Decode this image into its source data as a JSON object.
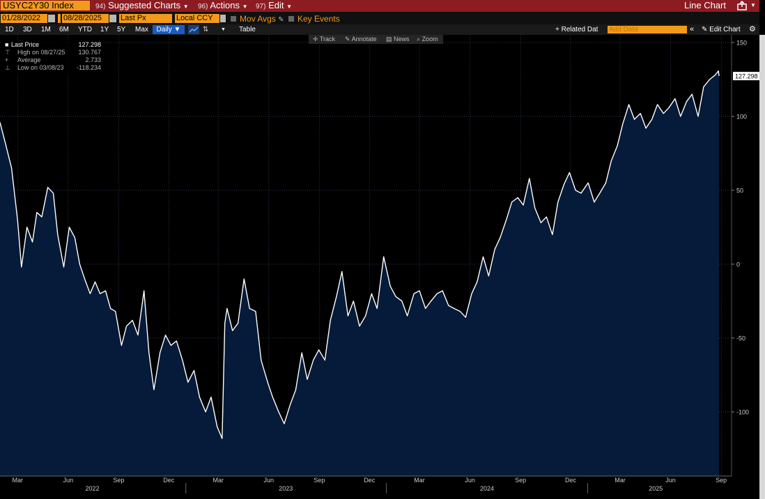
{
  "toolbar": {
    "ticker": "USYC2Y30 Index",
    "menu1_num": "94)",
    "menu1_label": "Suggested Charts",
    "menu2_num": "96)",
    "menu2_label": "Actions",
    "menu3_num": "97)",
    "menu3_label": "Edit",
    "chart_type": "Line Chart"
  },
  "settings": {
    "start_date": "01/28/2022",
    "end_date": "08/28/2025",
    "field": "Last Px",
    "currency": "Local CCY",
    "mov_avgs": "Mov Avgs",
    "key_events": "Key Events"
  },
  "periods": [
    "1D",
    "3D",
    "1M",
    "6M",
    "YTD",
    "1Y",
    "5Y",
    "Max"
  ],
  "frequency": "Daily",
  "table_label": "Table",
  "related_label": "+ Related Dat",
  "add_data_placeholder": "Add Data",
  "edit_chart_label": "Edit Chart",
  "tools": {
    "track": "Track",
    "annotate": "Annotate",
    "news": "News",
    "zoom": "Zoom"
  },
  "legend": {
    "last_label": "Last Price",
    "last_value": "127.298",
    "high_label": "High on 08/27/25",
    "high_value": "130.767",
    "avg_label": "Average",
    "avg_value": "2.733",
    "low_label": "Low on 03/08/23",
    "low_value": "-118.234"
  },
  "colors": {
    "accent": "#f39a1a",
    "title_bar": "#8c1c22",
    "line": "#ffffff",
    "fill": "#061a3a"
  },
  "chart_data": {
    "type": "area",
    "series": [
      {
        "name": "Last Price",
        "x": [
          "2022-01-28",
          "2022-02-08",
          "2022-02-18",
          "2022-03-01",
          "2022-03-08",
          "2022-03-18",
          "2022-03-28",
          "2022-04-05",
          "2022-04-14",
          "2022-04-25",
          "2022-05-05",
          "2022-05-13",
          "2022-05-24",
          "2022-06-03",
          "2022-06-13",
          "2022-06-22",
          "2022-07-01",
          "2022-07-11",
          "2022-07-20",
          "2022-07-29",
          "2022-08-08",
          "2022-08-17",
          "2022-08-26",
          "2022-09-06",
          "2022-09-15",
          "2022-09-26",
          "2022-10-06",
          "2022-10-17",
          "2022-10-26",
          "2022-11-04",
          "2022-11-15",
          "2022-11-25",
          "2022-12-05",
          "2022-12-15",
          "2022-12-26",
          "2023-01-05",
          "2023-01-16",
          "2023-01-26",
          "2023-02-06",
          "2023-02-16",
          "2023-02-27",
          "2023-03-08",
          "2023-03-13",
          "2023-03-17",
          "2023-03-27",
          "2023-04-06",
          "2023-04-17",
          "2023-04-27",
          "2023-05-08",
          "2023-05-18",
          "2023-05-30",
          "2023-06-08",
          "2023-06-19",
          "2023-06-29",
          "2023-07-10",
          "2023-07-20",
          "2023-07-31",
          "2023-08-10",
          "2023-08-21",
          "2023-08-31",
          "2023-09-11",
          "2023-09-21",
          "2023-10-02",
          "2023-10-12",
          "2023-10-23",
          "2023-11-02",
          "2023-11-13",
          "2023-11-24",
          "2023-12-05",
          "2023-12-15",
          "2023-12-27",
          "2024-01-08",
          "2024-01-18",
          "2024-01-29",
          "2024-02-08",
          "2024-02-20",
          "2024-03-01",
          "2024-03-12",
          "2024-03-22",
          "2024-04-02",
          "2024-04-12",
          "2024-04-23",
          "2024-05-03",
          "2024-05-14",
          "2024-05-24",
          "2024-06-04",
          "2024-06-14",
          "2024-06-25",
          "2024-07-05",
          "2024-07-16",
          "2024-07-26",
          "2024-08-06",
          "2024-08-16",
          "2024-08-27",
          "2024-09-06",
          "2024-09-17",
          "2024-09-27",
          "2024-10-08",
          "2024-10-18",
          "2024-10-29",
          "2024-11-08",
          "2024-11-19",
          "2024-11-29",
          "2024-12-10",
          "2024-12-20",
          "2025-01-02",
          "2025-01-13",
          "2025-01-23",
          "2025-02-03",
          "2025-02-13",
          "2025-02-24",
          "2025-03-06",
          "2025-03-17",
          "2025-03-27",
          "2025-04-07",
          "2025-04-17",
          "2025-04-28",
          "2025-05-08",
          "2025-05-19",
          "2025-05-29",
          "2025-06-09",
          "2025-06-19",
          "2025-06-30",
          "2025-07-10",
          "2025-07-21",
          "2025-07-31",
          "2025-08-11",
          "2025-08-21",
          "2025-08-27",
          "2025-08-28"
        ],
        "y": [
          96,
          80,
          65,
          30,
          -2,
          25,
          15,
          35,
          32,
          52,
          48,
          20,
          -2,
          25,
          18,
          0,
          -10,
          -20,
          -12,
          -20,
          -18,
          -30,
          -32,
          -55,
          -42,
          -38,
          -48,
          -18,
          -60,
          -85,
          -60,
          -48,
          -55,
          -52,
          -65,
          -80,
          -72,
          -90,
          -100,
          -90,
          -110,
          -118,
          -40,
          -30,
          -45,
          -40,
          -10,
          -30,
          -32,
          -65,
          -80,
          -90,
          -100,
          -108,
          -95,
          -85,
          -60,
          -78,
          -65,
          -58,
          -65,
          -38,
          -22,
          -5,
          -35,
          -25,
          -42,
          -35,
          -20,
          -30,
          5,
          -15,
          -22,
          -25,
          -35,
          -20,
          -18,
          -30,
          -25,
          -20,
          -18,
          -28,
          -30,
          -32,
          -36,
          -20,
          -12,
          5,
          -8,
          10,
          18,
          30,
          42,
          45,
          40,
          58,
          38,
          28,
          32,
          20,
          42,
          54,
          62,
          50,
          48,
          55,
          42,
          48,
          55,
          70,
          80,
          95,
          108,
          98,
          102,
          92,
          98,
          108,
          102,
          106,
          112,
          100,
          110,
          115,
          100,
          120,
          125,
          128,
          130.767,
          127.298
        ],
        "values_note_unused": ""
      }
    ],
    "xlabel": "",
    "ylabel": "",
    "ylim": [
      -140,
      150
    ],
    "yticks": [
      "150",
      "100",
      "50",
      "0",
      "-50",
      "-100"
    ],
    "xticks_months": [
      "Mar",
      "Jun",
      "Sep",
      "Dec",
      "Mar",
      "Jun",
      "Sep",
      "Dec",
      "Mar",
      "Jun",
      "Sep",
      "Dec",
      "Mar",
      "Jun",
      "Sep"
    ],
    "xticks_years": [
      "2022",
      "2023",
      "2024",
      "2025"
    ],
    "last_value_label": "127.298",
    "grid": true
  }
}
